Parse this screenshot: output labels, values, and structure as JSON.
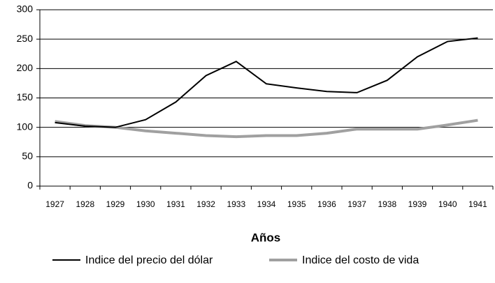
{
  "chart_data": {
    "type": "line",
    "x_label": "Años",
    "categories": [
      "1927",
      "1928",
      "1929",
      "1930",
      "1931",
      "1932",
      "1933",
      "1934",
      "1935",
      "1936",
      "1937",
      "1938",
      "1939",
      "1940",
      "1941"
    ],
    "series": [
      {
        "name": "Indice del precio del dólar",
        "color": "#000000",
        "values": [
          108,
          102,
          100,
          113,
          143,
          188,
          212,
          174,
          167,
          161,
          159,
          180,
          220,
          246,
          252
        ]
      },
      {
        "name": "Indice del costo de vida",
        "color": "#a0a0a0",
        "values": [
          110,
          103,
          100,
          94,
          90,
          86,
          84,
          86,
          86,
          90,
          97,
          97,
          97,
          104,
          112
        ]
      }
    ],
    "ylim": [
      0,
      300
    ],
    "yticks": [
      0,
      50,
      100,
      150,
      200,
      250,
      300
    ],
    "grid": true,
    "legend": "bottom"
  }
}
